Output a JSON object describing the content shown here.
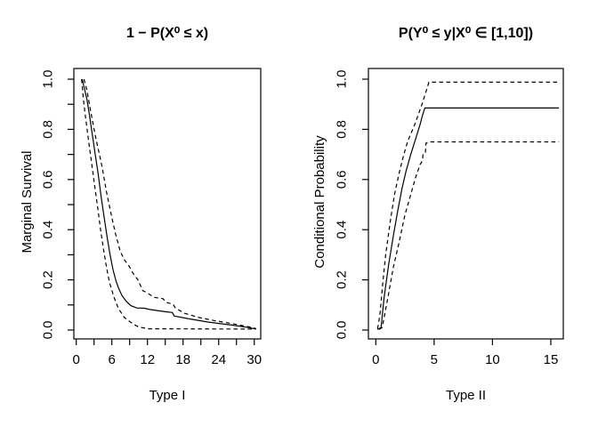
{
  "figure": {
    "background": "#ffffff",
    "line_color": "#000000"
  },
  "chart_data": [
    {
      "type": "line",
      "title": "1 − P(X⁰ ≤ x)",
      "xlabel": "Type I",
      "ylabel": "Marginal Survival",
      "xlim": [
        0,
        30
      ],
      "ylim": [
        0,
        1
      ],
      "grid": false,
      "legend": "none",
      "x_ticks": [
        0,
        3,
        6,
        9,
        12,
        15,
        18,
        21,
        24,
        27,
        30
      ],
      "x_tick_labels": [
        {
          "v": 0,
          "t": "0"
        },
        {
          "v": 6,
          "t": "6"
        },
        {
          "v": 12,
          "t": "12"
        },
        {
          "v": 18,
          "t": "18"
        },
        {
          "v": 24,
          "t": "24"
        },
        {
          "v": 30,
          "t": "30"
        }
      ],
      "y_ticks": [
        0,
        0.1,
        0.2,
        0.3,
        0.4,
        0.5,
        0.6,
        0.7,
        0.8,
        0.9,
        1.0
      ],
      "y_tick_labels": [
        {
          "v": 0,
          "t": "0.0"
        },
        {
          "v": 0.2,
          "t": "0.2"
        },
        {
          "v": 0.4,
          "t": "0.4"
        },
        {
          "v": 0.6,
          "t": "0.6"
        },
        {
          "v": 0.8,
          "t": "0.8"
        },
        {
          "v": 1.0,
          "t": "1.0"
        }
      ],
      "series": [
        {
          "name": "survival-estimate",
          "line": "solid",
          "points": [
            [
              1.0,
              1.0
            ],
            [
              1.4,
              0.96
            ],
            [
              1.8,
              0.92
            ],
            [
              2.2,
              0.86
            ],
            [
              2.7,
              0.78
            ],
            [
              3.2,
              0.7
            ],
            [
              3.7,
              0.62
            ],
            [
              4.2,
              0.53
            ],
            [
              4.7,
              0.45
            ],
            [
              5.2,
              0.37
            ],
            [
              5.7,
              0.3
            ],
            [
              6.2,
              0.24
            ],
            [
              6.7,
              0.195
            ],
            [
              7.2,
              0.163
            ],
            [
              7.7,
              0.138
            ],
            [
              8.4,
              0.115
            ],
            [
              9.2,
              0.097
            ],
            [
              10.2,
              0.088
            ],
            [
              11.5,
              0.087
            ],
            [
              12.4,
              0.082
            ],
            [
              13.5,
              0.078
            ],
            [
              15.0,
              0.073
            ],
            [
              16.2,
              0.07
            ],
            [
              16.5,
              0.056
            ],
            [
              19.2,
              0.044
            ],
            [
              22.2,
              0.032
            ],
            [
              26.2,
              0.02
            ],
            [
              29.0,
              0.01
            ],
            [
              30.3,
              0.004
            ]
          ]
        },
        {
          "name": "upper-confidence-band",
          "line": "dashed",
          "points": [
            [
              1.3,
              1.0
            ],
            [
              1.8,
              0.955
            ],
            [
              2.3,
              0.89
            ],
            [
              2.8,
              0.825
            ],
            [
              3.3,
              0.765
            ],
            [
              3.9,
              0.7
            ],
            [
              4.4,
              0.645
            ],
            [
              5.1,
              0.55
            ],
            [
              5.9,
              0.46
            ],
            [
              6.6,
              0.385
            ],
            [
              7.4,
              0.315
            ],
            [
              8.1,
              0.28
            ],
            [
              8.9,
              0.255
            ],
            [
              9.6,
              0.225
            ],
            [
              10.4,
              0.2
            ],
            [
              11.2,
              0.157
            ],
            [
              12.0,
              0.148
            ],
            [
              13.1,
              0.13
            ],
            [
              14.6,
              0.125
            ],
            [
              15.2,
              0.11
            ],
            [
              16.3,
              0.103
            ],
            [
              16.7,
              0.088
            ],
            [
              18.2,
              0.067
            ],
            [
              20.7,
              0.05
            ],
            [
              23.2,
              0.038
            ],
            [
              26.2,
              0.026
            ],
            [
              29.2,
              0.012
            ],
            [
              30.3,
              0.006
            ]
          ]
        },
        {
          "name": "lower-confidence-band",
          "line": "dashed",
          "points": [
            [
              0.9,
              1.0
            ],
            [
              1.2,
              0.92
            ],
            [
              1.6,
              0.84
            ],
            [
              2.1,
              0.75
            ],
            [
              2.6,
              0.665
            ],
            [
              3.1,
              0.575
            ],
            [
              3.6,
              0.49
            ],
            [
              4.1,
              0.4
            ],
            [
              4.6,
              0.32
            ],
            [
              5.1,
              0.25
            ],
            [
              5.6,
              0.19
            ],
            [
              6.4,
              0.128
            ],
            [
              7.1,
              0.086
            ],
            [
              8.1,
              0.05
            ],
            [
              9.4,
              0.027
            ],
            [
              10.5,
              0.012
            ],
            [
              12.2,
              0.005
            ],
            [
              30.3,
              0.004
            ]
          ]
        }
      ]
    },
    {
      "type": "line",
      "title": "P(Y⁰ ≤ y|X⁰ ∈ [1,10])",
      "xlabel": "Type II",
      "ylabel": "Conditional Probability",
      "xlim": [
        0,
        15
      ],
      "ylim": [
        0,
        1
      ],
      "grid": false,
      "legend": "none",
      "x_ticks": [
        0,
        5,
        10,
        15
      ],
      "x_tick_labels": [
        {
          "v": 0,
          "t": "0"
        },
        {
          "v": 5,
          "t": "5"
        },
        {
          "v": 10,
          "t": "10"
        },
        {
          "v": 15,
          "t": "15"
        }
      ],
      "y_ticks": [
        0,
        0.2,
        0.4,
        0.6,
        0.8,
        1.0
      ],
      "y_tick_labels": [
        {
          "v": 0,
          "t": "0.0"
        },
        {
          "v": 0.2,
          "t": "0.2"
        },
        {
          "v": 0.4,
          "t": "0.4"
        },
        {
          "v": 0.6,
          "t": "0.6"
        },
        {
          "v": 0.8,
          "t": "0.8"
        },
        {
          "v": 1.0,
          "t": "1.0"
        }
      ],
      "series": [
        {
          "name": "conditional-probability-estimate",
          "line": "solid",
          "points": [
            [
              0.15,
              0.002
            ],
            [
              0.45,
              0.01
            ],
            [
              0.7,
              0.125
            ],
            [
              1.1,
              0.26
            ],
            [
              1.5,
              0.375
            ],
            [
              1.9,
              0.48
            ],
            [
              2.25,
              0.565
            ],
            [
              2.6,
              0.635
            ],
            [
              3.0,
              0.7
            ],
            [
              3.4,
              0.76
            ],
            [
              3.8,
              0.82
            ],
            [
              4.0,
              0.855
            ],
            [
              4.1,
              0.87
            ],
            [
              4.2,
              0.885
            ],
            [
              15.7,
              0.885
            ]
          ]
        },
        {
          "name": "upper-confidence-band",
          "line": "dashed",
          "points": [
            [
              0.15,
              0.005
            ],
            [
              0.35,
              0.06
            ],
            [
              0.6,
              0.19
            ],
            [
              0.85,
              0.3
            ],
            [
              1.2,
              0.42
            ],
            [
              1.6,
              0.54
            ],
            [
              2.0,
              0.625
            ],
            [
              2.4,
              0.7
            ],
            [
              2.75,
              0.755
            ],
            [
              3.3,
              0.815
            ],
            [
              3.65,
              0.86
            ],
            [
              4.0,
              0.905
            ],
            [
              4.3,
              0.95
            ],
            [
              4.55,
              0.988
            ],
            [
              15.7,
              0.988
            ]
          ]
        },
        {
          "name": "lower-confidence-band",
          "line": "dashed",
          "points": [
            [
              0.3,
              0.002
            ],
            [
              0.55,
              0.01
            ],
            [
              1.0,
              0.12
            ],
            [
              1.5,
              0.25
            ],
            [
              2.0,
              0.35
            ],
            [
              2.5,
              0.46
            ],
            [
              3.0,
              0.54
            ],
            [
              3.4,
              0.607
            ],
            [
              3.8,
              0.66
            ],
            [
              4.0,
              0.675
            ],
            [
              4.05,
              0.7
            ],
            [
              4.25,
              0.705
            ],
            [
              4.3,
              0.745
            ],
            [
              4.55,
              0.748
            ],
            [
              4.6,
              0.75
            ],
            [
              15.7,
              0.75
            ]
          ]
        }
      ]
    }
  ]
}
